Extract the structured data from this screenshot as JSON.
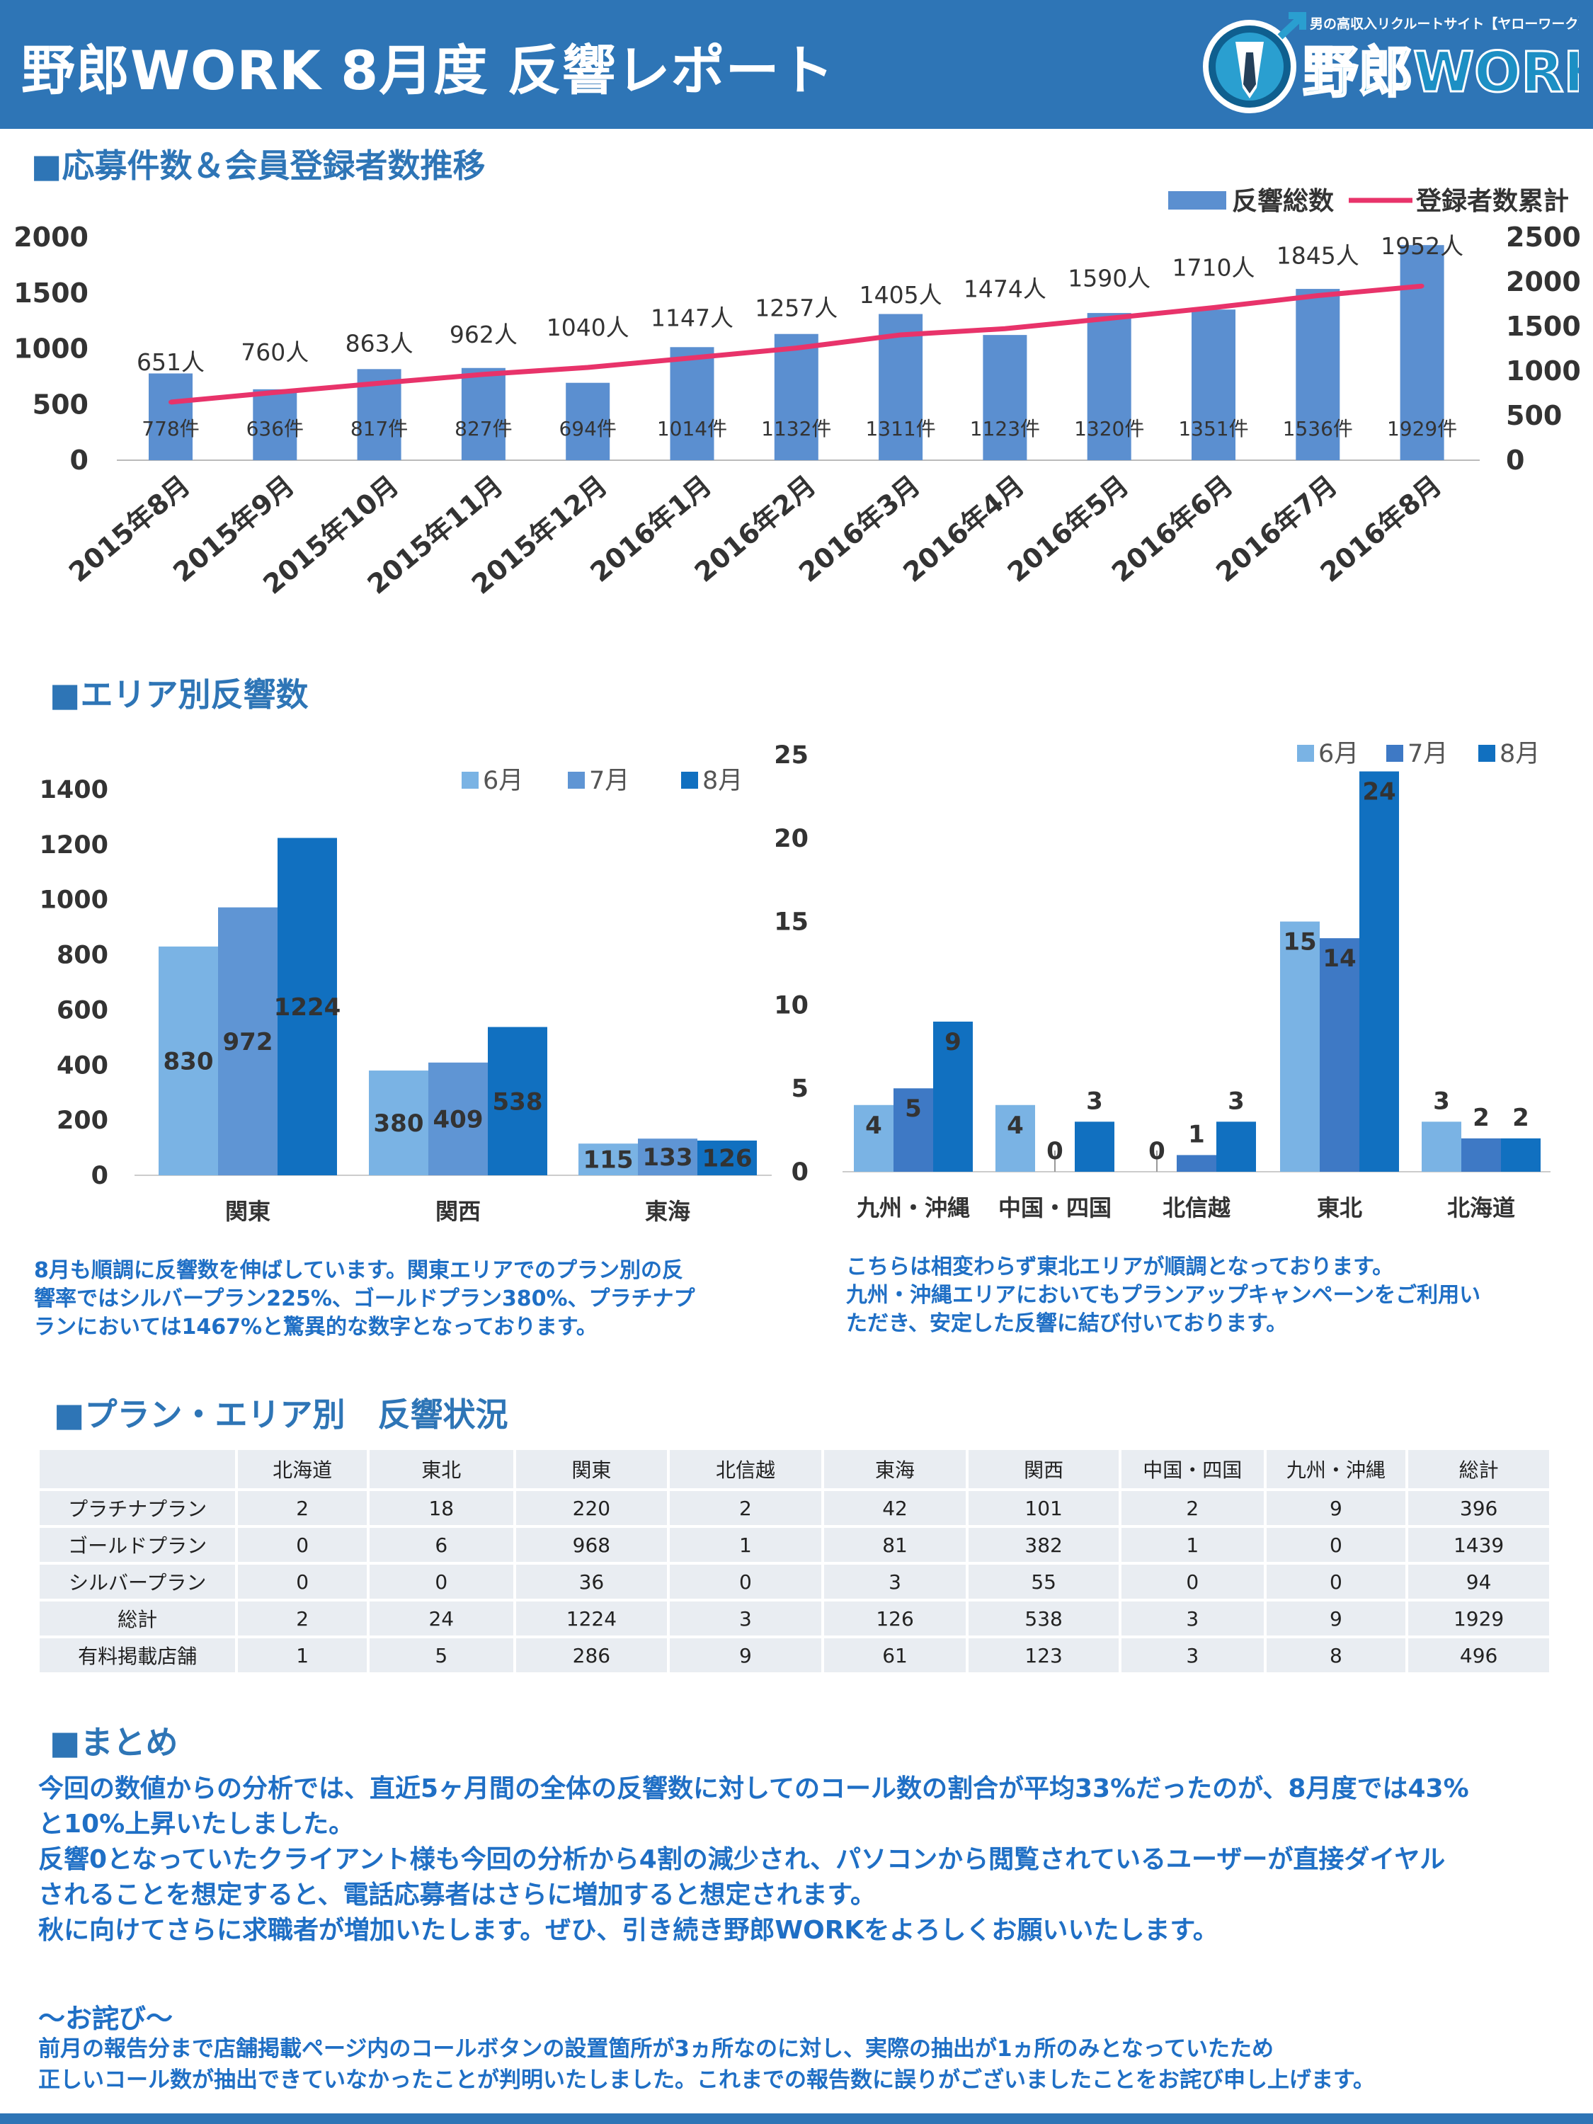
{
  "header": {
    "title": "野郎WORK 8月度 反響レポート",
    "logo_tagline": "男の高収入リクルートサイト【ヤローワーク】",
    "logo_text": "野郎WORK",
    "color": "#2e75b6"
  },
  "sections": {
    "s1": "■応募件数＆会員登録者数推移",
    "s2": "■エリア別反響数",
    "s3": "■プラン・エリア別　反響状況",
    "s4": "■まとめ"
  },
  "chart_data": [
    {
      "type": "bar+line",
      "categories": [
        "2015年8月",
        "2015年9月",
        "2015年10月",
        "2015年11月",
        "2015年12月",
        "2016年1月",
        "2016年2月",
        "2016年3月",
        "2016年4月",
        "2016年5月",
        "2016年6月",
        "2016年7月",
        "2016年8月"
      ],
      "series": [
        {
          "name": "反響総数",
          "type": "bar",
          "axis": "left",
          "color": "#5b8fd0",
          "values": [
            778,
            636,
            817,
            827,
            694,
            1014,
            1132,
            1311,
            1123,
            1320,
            1351,
            1536,
            1929
          ],
          "label_suffix": "件"
        },
        {
          "name": "登録者数累計",
          "type": "line",
          "axis": "right",
          "color": "#e8336a",
          "values": [
            651,
            760,
            863,
            962,
            1040,
            1147,
            1257,
            1405,
            1474,
            1590,
            1710,
            1845,
            1952
          ],
          "label_suffix": "人"
        }
      ],
      "ylim_left": [
        0,
        2000
      ],
      "yticks_left": [
        0,
        500,
        1000,
        1500,
        2000
      ],
      "ylim_right": [
        0,
        2500
      ],
      "yticks_right": [
        0,
        500,
        1000,
        1500,
        2000,
        2500
      ],
      "legend": "top-right",
      "grid": false
    },
    {
      "type": "bar",
      "categories": [
        "関東",
        "関西",
        "東海"
      ],
      "series": [
        {
          "name": "6月",
          "color": "#7ab3e4",
          "values": [
            830,
            380,
            115
          ]
        },
        {
          "name": "7月",
          "color": "#5f95d4",
          "values": [
            972,
            409,
            133
          ]
        },
        {
          "name": "8月",
          "color": "#1170c0",
          "values": [
            1224,
            538,
            126
          ]
        }
      ],
      "ylim": [
        0,
        1400
      ],
      "yticks": [
        0,
        200,
        400,
        600,
        800,
        1000,
        1200,
        1400
      ],
      "legend": "top",
      "grid": false
    },
    {
      "type": "bar",
      "categories": [
        "九州・沖縄",
        "中国・四国",
        "北信越",
        "東北",
        "北海道"
      ],
      "series": [
        {
          "name": "6月",
          "color": "#7ab3e4",
          "values": [
            4,
            4,
            0,
            15,
            3
          ]
        },
        {
          "name": "7月",
          "color": "#3e79c5",
          "values": [
            5,
            0,
            1,
            14,
            2
          ]
        },
        {
          "name": "8月",
          "color": "#1170c0",
          "values": [
            9,
            3,
            3,
            24,
            2
          ]
        }
      ],
      "ylim": [
        0,
        25
      ],
      "yticks": [
        0,
        5,
        10,
        15,
        20,
        25
      ],
      "legend": "top-right",
      "grid": false
    }
  ],
  "comments": {
    "left": [
      "8月も順調に反響数を伸ばしています。関東エリアでのプラン別の反",
      "響率ではシルバープラン225%、ゴールドプラン380%、プラチナプ",
      "ランにおいては1467%と驚異的な数字となっております。"
    ],
    "right": [
      "こちらは相変わらず東北エリアが順調となっております。",
      "九州・沖縄エリアにおいてもプランアップキャンペーンをご利用い",
      "ただき、安定した反響に結び付いております。"
    ]
  },
  "table": {
    "headers": [
      "",
      "北海道",
      "東北",
      "関東",
      "北信越",
      "東海",
      "関西",
      "中国・四国",
      "九州・沖縄",
      "総計"
    ],
    "rows": [
      [
        "プラチナプラン",
        "2",
        "18",
        "220",
        "2",
        "42",
        "101",
        "2",
        "9",
        "396"
      ],
      [
        "ゴールドプラン",
        "0",
        "6",
        "968",
        "1",
        "81",
        "382",
        "1",
        "0",
        "1439"
      ],
      [
        "シルバープラン",
        "0",
        "0",
        "36",
        "0",
        "3",
        "55",
        "0",
        "0",
        "94"
      ],
      [
        "総計",
        "2",
        "24",
        "1224",
        "3",
        "126",
        "538",
        "3",
        "9",
        "1929"
      ],
      [
        "有料掲載店舗",
        "1",
        "5",
        "286",
        "9",
        "61",
        "123",
        "3",
        "8",
        "496"
      ]
    ]
  },
  "summary": [
    "今回の数値からの分析では、直近5ヶ月間の全体の反響数に対してのコール数の割合が平均33%だったのが、8月度では43%",
    "と10%上昇いたしました。",
    "反響0となっていたクライアント様も今回の分析から4割の減少され、パソコンから閲覧されているユーザーが直接ダイヤル",
    "されることを想定すると、電話応募者はさらに増加すると想定されます。",
    "秋に向けてさらに求職者が増加いたします。ぜひ、引き続き野郎WORKをよろしくお願いいたします。"
  ],
  "apology": {
    "title": "～お詫び～",
    "lines": [
      "前月の報告分まで店舗掲載ページ内のコールボタンの設置箇所が3ヵ所なのに対し、実際の抽出が1ヵ所のみとなっていたため",
      "正しいコール数が抽出できていなかったことが判明いたしました。これまでの報告数に誤りがございましたことをお詫び申し上げます。"
    ]
  }
}
